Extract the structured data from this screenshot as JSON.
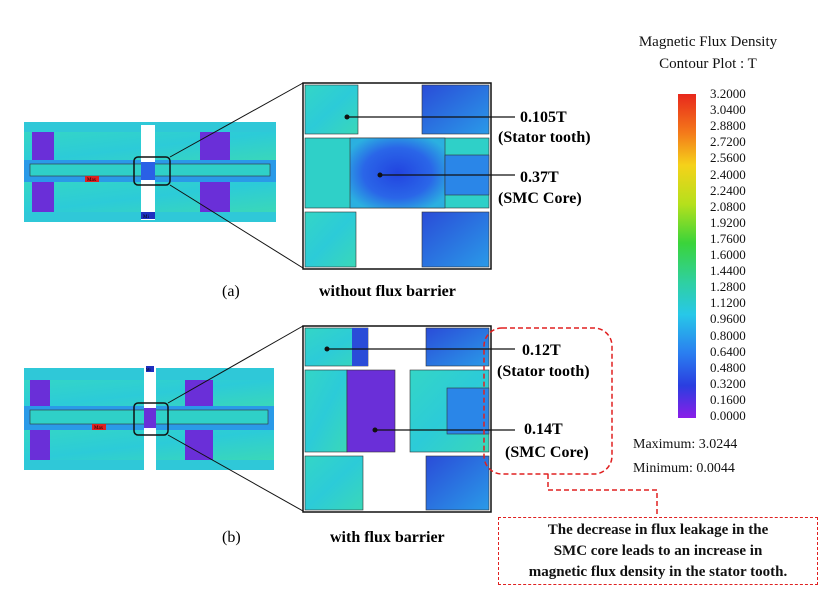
{
  "legend": {
    "title_line1": "Magnetic Flux Density",
    "title_line2": "Contour Plot : T",
    "ticks": [
      "3.2000",
      "3.0400",
      "2.8800",
      "2.7200",
      "2.5600",
      "2.4000",
      "2.2400",
      "2.0800",
      "1.9200",
      "1.7600",
      "1.6000",
      "1.4400",
      "1.2800",
      "1.1200",
      "0.9600",
      "0.8000",
      "0.6400",
      "0.4800",
      "0.3200",
      "0.1600",
      "0.0000"
    ],
    "maximum": "Maximum: 3.0244",
    "minimum": "Minimum: 0.0044"
  },
  "panel_a": {
    "caption": "(a)",
    "title": "without flux barrier",
    "stator_value": "0.105T",
    "stator_label": "(Stator tooth)",
    "core_value": "0.37T",
    "core_label": "(SMC Core)",
    "max_tag": "Max",
    "min_tag": "Mi"
  },
  "panel_b": {
    "caption": "(b)",
    "title": "with flux barrier",
    "stator_value": "0.12T",
    "stator_label": "(Stator tooth)",
    "core_value": "0.14T",
    "core_label": "(SMC Core)",
    "max_tag": "Max",
    "min_tag": "Mi"
  },
  "note": {
    "line1": "The decrease in flux leakage in the",
    "line2": "SMC core leads to an increase in",
    "line3": "magnetic flux density in the stator tooth."
  },
  "colors": {
    "field": "#2fd0c8",
    "low": "#2a4fe0",
    "very_low": "#6a2fd8",
    "annotation": "#e02020"
  }
}
